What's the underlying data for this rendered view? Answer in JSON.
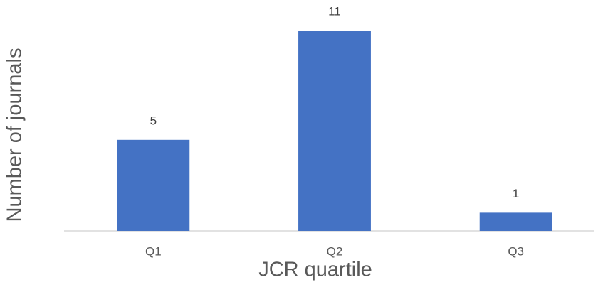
{
  "chart_data": {
    "type": "bar",
    "x_label": "JCR quartile",
    "y_label": "Number of journals",
    "categories": [
      "Q1",
      "Q2",
      "Q3"
    ],
    "values": [
      5,
      11,
      1
    ],
    "color": "#4472c4"
  }
}
